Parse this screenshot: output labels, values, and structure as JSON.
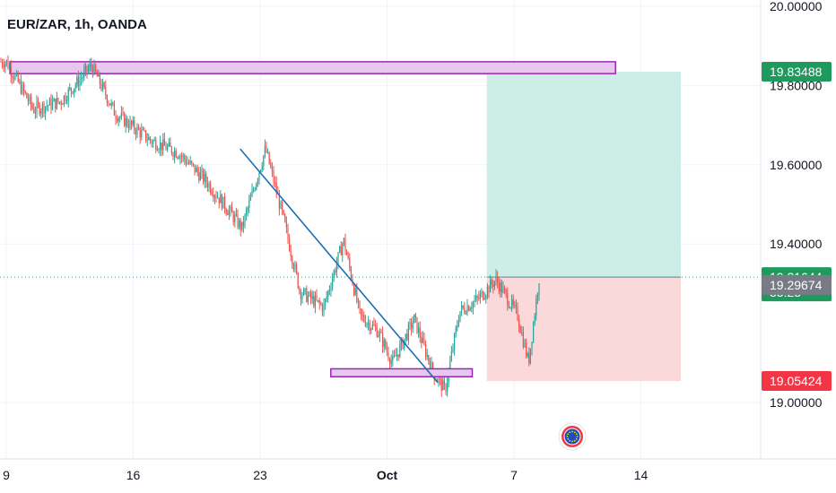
{
  "header": {
    "symbol_label": "EUR/ZAR, 1h, OANDA"
  },
  "chart_data": {
    "type": "candlestick",
    "title": "EUR/ZAR, 1h, OANDA",
    "yaxis_ticks": [
      "20.00000",
      "19.80000",
      "19.60000",
      "19.40000",
      "19.00000"
    ],
    "yaxis_tick_values": [
      20.0,
      19.8,
      19.6,
      19.4,
      19.0
    ],
    "ylim": [
      18.86,
      20.02
    ],
    "xaxis_ticks": [
      "9",
      "16",
      "23",
      "Oct",
      "7",
      "14"
    ],
    "price_series_anchors": [
      {
        "day": 0.0,
        "price": 19.86
      },
      {
        "day": 1.5,
        "price": 19.74
      },
      {
        "day": 3.0,
        "price": 19.76
      },
      {
        "day": 4.7,
        "price": 19.85
      },
      {
        "day": 6.0,
        "price": 19.73
      },
      {
        "day": 8.0,
        "price": 19.66
      },
      {
        "day": 9.5,
        "price": 19.63
      },
      {
        "day": 11.0,
        "price": 19.56
      },
      {
        "day": 13.0,
        "price": 19.44
      },
      {
        "day": 14.3,
        "price": 19.64
      },
      {
        "day": 15.3,
        "price": 19.46
      },
      {
        "day": 16.2,
        "price": 19.28
      },
      {
        "day": 17.5,
        "price": 19.24
      },
      {
        "day": 18.6,
        "price": 19.41
      },
      {
        "day": 19.5,
        "price": 19.22
      },
      {
        "day": 20.5,
        "price": 19.18
      },
      {
        "day": 21.3,
        "price": 19.1
      },
      {
        "day": 22.5,
        "price": 19.21
      },
      {
        "day": 23.5,
        "price": 19.08
      },
      {
        "day": 24.2,
        "price": 19.03
      },
      {
        "day": 25.0,
        "price": 19.23
      },
      {
        "day": 26.0,
        "price": 19.26
      },
      {
        "day": 27.0,
        "price": 19.31
      },
      {
        "day": 28.2,
        "price": 19.22
      },
      {
        "day": 28.8,
        "price": 19.1
      },
      {
        "day": 29.4,
        "price": 19.32
      }
    ],
    "price_tags": [
      {
        "label": "19.83488",
        "value": 19.83488,
        "color": "#1e9a5c"
      },
      {
        "label": "19.31644",
        "value": 19.31644,
        "color": "#1e9a5c",
        "sublabel": "33:23"
      },
      {
        "label": "19.29674",
        "value": 19.29674,
        "color": "#787b86"
      },
      {
        "label": "19.05424",
        "value": 19.05424,
        "color": "#f23645"
      }
    ],
    "drawings": {
      "resistance_zone": {
        "price_low": 19.83,
        "price_high": 19.86,
        "day_start": 0.2,
        "day_end": 33.6
      },
      "support_zone": {
        "price_low": 19.065,
        "price_high": 19.085,
        "day_start": 17.9,
        "day_end": 25.7
      },
      "trendline": [
        {
          "day": 12.9,
          "price": 19.64
        },
        {
          "day": 23.8,
          "price": 19.05
        }
      ],
      "position": {
        "entry": 19.31644,
        "target": 19.83488,
        "stop": 19.05424,
        "day_start": 26.5,
        "day_end": 37.2
      }
    },
    "colors": {
      "up": "#26a69a",
      "down": "#ef5350",
      "line": "#2962ff",
      "zone_border": "#9c27b0",
      "zone_fill": "#e7c6ef",
      "profit_fill": "#cdeee6",
      "loss_fill": "#fbd8da",
      "trend": "#1c6fb4"
    }
  }
}
